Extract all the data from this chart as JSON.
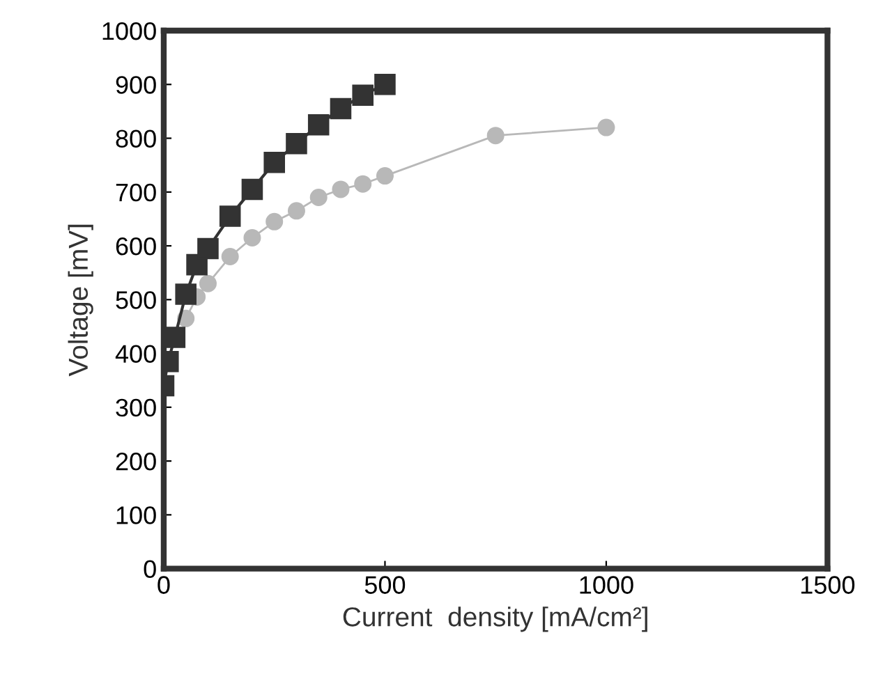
{
  "chart_data": {
    "type": "line",
    "xlabel": "Current  density [mA/cm²]",
    "ylabel": "Voltage [mV]",
    "xlim": [
      0,
      1500
    ],
    "xticks": [
      0,
      500,
      1000,
      1500
    ],
    "ylim": [
      0,
      1000
    ],
    "yticks": [
      0,
      100,
      200,
      300,
      400,
      500,
      600,
      700,
      800,
      900,
      1000
    ],
    "grid": false,
    "series": [
      {
        "color": "#b8b8b8",
        "marker": "circle",
        "x": [
          50,
          75,
          100,
          150,
          200,
          250,
          300,
          350,
          400,
          450,
          500,
          750,
          1000
        ],
        "values": [
          465,
          505,
          530,
          580,
          615,
          645,
          665,
          690,
          705,
          715,
          730,
          805,
          820
        ]
      },
      {
        "color": "#333333",
        "marker": "square",
        "x": [
          0,
          10,
          25,
          50,
          75,
          100,
          150,
          200,
          250,
          300,
          350,
          400,
          450,
          500
        ],
        "values": [
          340,
          385,
          430,
          510,
          565,
          595,
          655,
          705,
          755,
          790,
          825,
          855,
          880,
          900
        ]
      }
    ]
  }
}
